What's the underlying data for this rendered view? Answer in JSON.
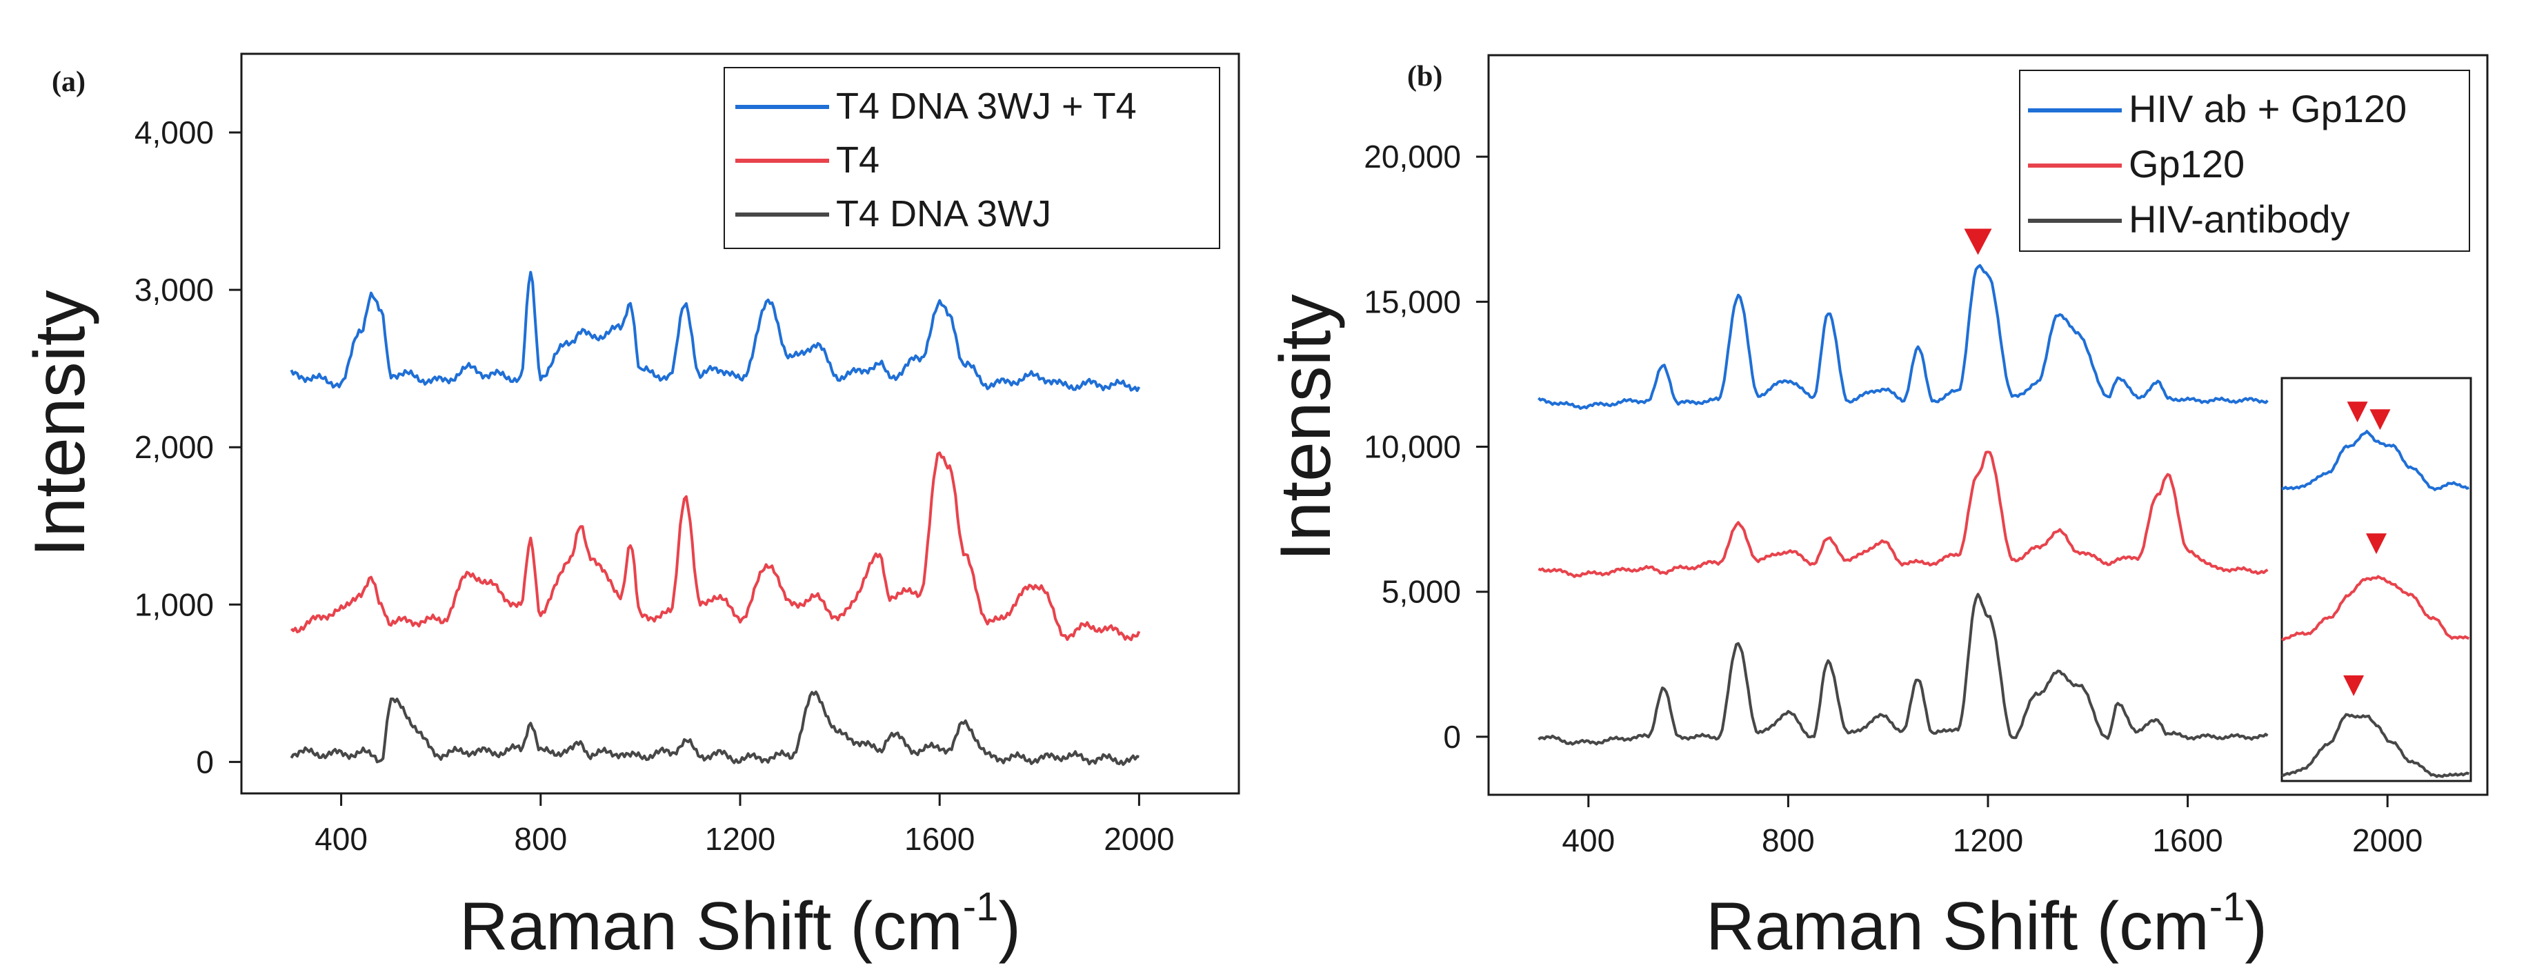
{
  "colors": {
    "blue": "#1f6fd6",
    "red": "#e8434c",
    "gray": "#474747",
    "marker": "#e11b22",
    "frame": "#1a1a1a"
  },
  "chart_data": [
    {
      "panel_label": "(a)",
      "type": "line",
      "xlabel_main": "Raman Shift (cm",
      "xlabel_sup": "-1",
      "xlabel_close": ")",
      "ylabel": "Intensity",
      "xlim": [
        200,
        2200
      ],
      "ylim": [
        -200,
        4500
      ],
      "xticks": [
        400,
        800,
        1200,
        1600,
        2000
      ],
      "xtick_labels": [
        "400",
        "800",
        "1200",
        "1600",
        "2000"
      ],
      "yticks": [
        0,
        1000,
        2000,
        3000,
        4000
      ],
      "ytick_labels": [
        "0",
        "1,000",
        "2,000",
        "3,000",
        "4,000"
      ],
      "legend_position": "top-right",
      "x": [
        300,
        400,
        440,
        460,
        480,
        500,
        600,
        660,
        700,
        760,
        780,
        800,
        860,
        880,
        900,
        960,
        980,
        1000,
        1060,
        1090,
        1120,
        1150,
        1200,
        1260,
        1300,
        1350,
        1400,
        1480,
        1500,
        1560,
        1600,
        1620,
        1650,
        1700,
        1800,
        1850,
        1900,
        2000
      ],
      "series": [
        {
          "name": "T4 DNA 3WJ + T4",
          "color_key": "blue",
          "values": [
            2460,
            2410,
            2750,
            2970,
            2850,
            2470,
            2420,
            2500,
            2460,
            2440,
            3090,
            2460,
            2680,
            2730,
            2700,
            2750,
            2930,
            2480,
            2450,
            2920,
            2440,
            2510,
            2430,
            2920,
            2560,
            2650,
            2450,
            2520,
            2450,
            2560,
            2900,
            2840,
            2520,
            2400,
            2450,
            2390,
            2400,
            2390
          ]
        },
        {
          "name": "T4",
          "color_key": "red",
          "values": [
            850,
            960,
            1080,
            1150,
            1000,
            890,
            900,
            1200,
            1120,
            980,
            1420,
            940,
            1300,
            1480,
            1310,
            1060,
            1390,
            920,
            940,
            1700,
            990,
            1060,
            920,
            1260,
            1000,
            1040,
            920,
            1300,
            1060,
            1080,
            1950,
            1890,
            1300,
            880,
            1130,
            810,
            860,
            800
          ]
        },
        {
          "name": "T4 DNA 3WJ",
          "color_key": "gray",
          "values": [
            60,
            50,
            60,
            40,
            20,
            380,
            50,
            70,
            60,
            80,
            260,
            60,
            70,
            120,
            50,
            60,
            30,
            40,
            60,
            130,
            40,
            50,
            20,
            30,
            40,
            430,
            170,
            80,
            170,
            70,
            100,
            80,
            250,
            30,
            20,
            40,
            20,
            10
          ]
        }
      ]
    },
    {
      "panel_label": "(b)",
      "type": "line",
      "xlabel_main": "Raman Shift (cm",
      "xlabel_sup": "-1",
      "xlabel_close": ")",
      "ylabel": "Intensity",
      "xlim": [
        200,
        2200
      ],
      "ylim": [
        -2000,
        23500
      ],
      "xticks": [
        400,
        800,
        1200,
        1600,
        2000
      ],
      "xtick_labels": [
        "400",
        "800",
        "1200",
        "1600",
        "2000"
      ],
      "yticks": [
        0,
        5000,
        10000,
        15000,
        20000
      ],
      "ytick_labels": [
        "0",
        "5,000",
        "10,000",
        "15,000",
        "20,000"
      ],
      "legend_position": "top-right",
      "x": [
        300,
        380,
        520,
        550,
        580,
        660,
        700,
        740,
        800,
        850,
        880,
        920,
        990,
        1030,
        1060,
        1090,
        1140,
        1180,
        1200,
        1250,
        1300,
        1340,
        1380,
        1440,
        1460,
        1500,
        1540,
        1560,
        1600,
        1660,
        1760
      ],
      "series": [
        {
          "name": "HIV ab + Gp120",
          "color_key": "blue",
          "values": [
            11600,
            11400,
            11600,
            12800,
            11500,
            11600,
            15200,
            11800,
            12300,
            11700,
            14600,
            11600,
            12000,
            11600,
            13400,
            11600,
            11900,
            16200,
            15900,
            11700,
            12200,
            14600,
            13900,
            11700,
            12400,
            11700,
            12200,
            11700,
            11600,
            11600,
            11600
          ]
        },
        {
          "name": "Gp120",
          "color_key": "red",
          "values": [
            5800,
            5600,
            5800,
            5700,
            5800,
            6000,
            7300,
            6100,
            6400,
            6000,
            6800,
            6100,
            6700,
            6000,
            6000,
            6000,
            6300,
            9000,
            9900,
            6100,
            6500,
            7100,
            6400,
            6000,
            6100,
            6200,
            8300,
            9100,
            6400,
            5800,
            5700
          ]
        },
        {
          "name": "HIV-antibody",
          "color_key": "gray",
          "values": [
            0,
            -200,
            0,
            1700,
            0,
            0,
            3200,
            100,
            800,
            0,
            2600,
            100,
            700,
            200,
            2000,
            100,
            300,
            4900,
            4200,
            0,
            1500,
            2200,
            1800,
            0,
            1100,
            200,
            600,
            100,
            0,
            0,
            0
          ]
        }
      ],
      "annotations": [
        {
          "type": "marker",
          "x": 1180,
          "y": 16900,
          "shape": "down-triangle"
        }
      ]
    }
  ],
  "inset": {
    "x": [
      0,
      0.12,
      0.25,
      0.35,
      0.45,
      0.5,
      0.58,
      0.68,
      0.8,
      0.9,
      1.0
    ],
    "series": [
      {
        "color_key": "blue",
        "values": [
          0.18,
          0.21,
          0.32,
          0.52,
          0.62,
          0.56,
          0.52,
          0.36,
          0.19,
          0.22,
          0.2
        ]
      },
      {
        "color_key": "red",
        "values": [
          0.07,
          0.1,
          0.22,
          0.4,
          0.54,
          0.54,
          0.5,
          0.4,
          0.22,
          0.08,
          0.06
        ]
      },
      {
        "color_key": "gray",
        "values": [
          0.04,
          0.1,
          0.3,
          0.52,
          0.5,
          0.44,
          0.3,
          0.16,
          0.05,
          0.04,
          0.07
        ]
      }
    ],
    "markers": [
      {
        "x": 0.4,
        "y": 0.76
      },
      {
        "x": 0.52,
        "y": 0.7
      },
      {
        "x": 0.5,
        "y": 0.78
      },
      {
        "x": 0.38,
        "y": 0.72
      }
    ]
  }
}
